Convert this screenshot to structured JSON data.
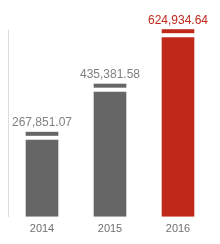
{
  "chart_data": {
    "type": "bar",
    "categories": [
      "2014",
      "2015",
      "2016"
    ],
    "values": [
      267851.07,
      435381.58,
      624934.64
    ],
    "value_labels": [
      "267,851.07",
      "435,381.58",
      "624,934.64"
    ],
    "colors": [
      "#666666",
      "#666666",
      "#c0281a"
    ],
    "ylim": [
      0,
      650000
    ],
    "grid": false,
    "data_labels": true,
    "tick_labels": "x"
  }
}
